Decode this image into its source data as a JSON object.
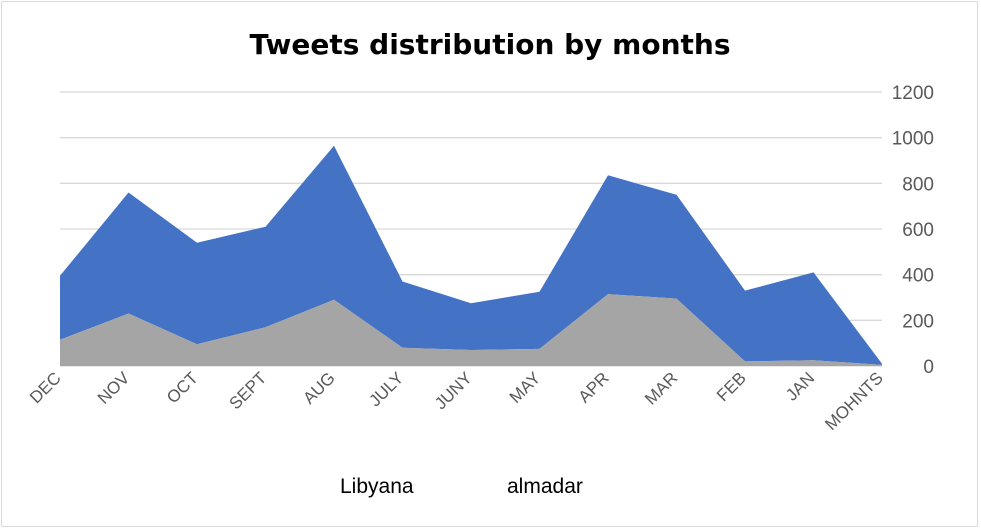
{
  "chart_data": {
    "type": "area",
    "title": "Tweets distribution by months",
    "categories": [
      "DEC",
      "NOV",
      "OCT",
      "SEPT",
      "AUG",
      "JULY",
      "JUNY",
      "MAY",
      "APR",
      "MAR",
      "FEB",
      "JAN",
      "MOHNTS"
    ],
    "series": [
      {
        "name": "Libyana",
        "values": [
          280,
          530,
          445,
          440,
          675,
          290,
          205,
          250,
          520,
          455,
          310,
          385,
          5
        ],
        "color": "#4472c4"
      },
      {
        "name": "almadar",
        "values": [
          115,
          230,
          95,
          170,
          290,
          80,
          70,
          75,
          315,
          295,
          20,
          25,
          5
        ],
        "color": "#a5a5a5"
      }
    ],
    "stacked": true,
    "ylim": [
      0,
      1200
    ],
    "yticks": [
      "0",
      "200",
      "400",
      "600",
      "800",
      "1000",
      "1200"
    ],
    "y_axis_side": "right",
    "grid": true,
    "legend_position": "bottom"
  }
}
